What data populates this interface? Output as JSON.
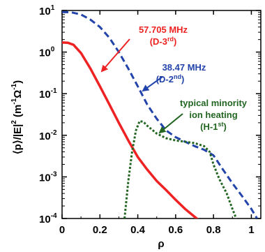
{
  "chart_data": {
    "type": "line",
    "title": "",
    "xlabel": "ρ",
    "ylabel": {
      "text": "⟨p⟩/|E|",
      "power": "2",
      "units_open": " (m",
      "units_exp": "-1",
      "units_mid": "Ω",
      "units_exp2": "-1",
      "units_close": ")"
    },
    "xlim": [
      0,
      1.05
    ],
    "ylim": [
      0.0001,
      10
    ],
    "yscale": "log",
    "x_ticks": [
      {
        "value": 0,
        "label": "0"
      },
      {
        "value": 0.2,
        "label": "0.2"
      },
      {
        "value": 0.4,
        "label": "0.4"
      },
      {
        "value": 0.6,
        "label": "0.6"
      },
      {
        "value": 0.8,
        "label": "0.8"
      },
      {
        "value": 1.0,
        "label": "1"
      }
    ],
    "y_ticks": [
      {
        "value": 10,
        "base": "10",
        "exp": "1"
      },
      {
        "value": 1,
        "base": "10",
        "exp": "0"
      },
      {
        "value": 0.1,
        "base": "10",
        "exp": "-1"
      },
      {
        "value": 0.01,
        "base": "10",
        "exp": "-2"
      },
      {
        "value": 0.001,
        "base": "10",
        "exp": "-3"
      },
      {
        "value": 0.0001,
        "base": "10",
        "exp": "-4"
      }
    ],
    "series": [
      {
        "key": "d3",
        "color": "#ee2222",
        "style": "solid",
        "x": [
          0,
          0.03,
          0.06,
          0.1,
          0.15,
          0.2,
          0.25,
          0.3,
          0.35,
          0.4,
          0.45,
          0.5,
          0.55,
          0.6,
          0.65,
          0.7,
          0.75,
          0.77
        ],
        "y": [
          1.7,
          1.68,
          1.5,
          0.95,
          0.4,
          0.15,
          0.055,
          0.02,
          0.0075,
          0.003,
          0.0015,
          0.0008,
          0.00048,
          0.00028,
          0.00017,
          0.00011,
          7.2e-05,
          6.55e-05
        ]
      },
      {
        "key": "d2",
        "color": "#2244aa",
        "style": "dashed",
        "x": [
          0,
          0.05,
          0.1,
          0.15,
          0.2,
          0.25,
          0.3,
          0.35,
          0.4,
          0.45,
          0.5,
          0.55,
          0.6,
          0.65,
          0.7,
          0.75,
          0.8,
          0.85,
          0.9,
          0.95,
          1.0,
          1.03
        ],
        "y": [
          9.2,
          9.0,
          8.0,
          6.0,
          4.0,
          2.2,
          1.0,
          0.4,
          0.15,
          0.055,
          0.025,
          0.013,
          0.009,
          0.007,
          0.0055,
          0.0045,
          0.0033,
          0.0015,
          0.0007,
          0.00035,
          0.00017,
          0.0001
        ]
      },
      {
        "key": "h1",
        "color": "#226622",
        "style": "dotted",
        "x": [
          0.33,
          0.35,
          0.37,
          0.39,
          0.41,
          0.43,
          0.45,
          0.5,
          0.55,
          0.6,
          0.65,
          0.7,
          0.75,
          0.78,
          0.8,
          0.83,
          0.87,
          0.9,
          0.92
        ],
        "y": [
          0.0001,
          0.0008,
          0.004,
          0.013,
          0.022,
          0.021,
          0.017,
          0.011,
          0.0085,
          0.0075,
          0.007,
          0.0065,
          0.0055,
          0.004,
          0.002,
          0.0009,
          0.0004,
          0.00017,
          0.0001
        ]
      }
    ],
    "annotations": [
      {
        "key": "d3",
        "color": "#ee2222",
        "line1": "57.705 MHz",
        "line2_pre": "(D-3",
        "line2_sup": "rd",
        "line2_post": ")"
      },
      {
        "key": "d2",
        "color": "#2244aa",
        "line1": "38.47 MHz",
        "line2_pre": "(D-2",
        "line2_sup": "nd",
        "line2_post": ")"
      },
      {
        "key": "h1",
        "color": "#226622",
        "line1": "typical minority",
        "line2_pre": "ion heating",
        "line2_sup": "",
        "line2_post": "",
        "line3_pre": "(H-1",
        "line3_sup": "st",
        "line3_post": ")"
      }
    ]
  }
}
